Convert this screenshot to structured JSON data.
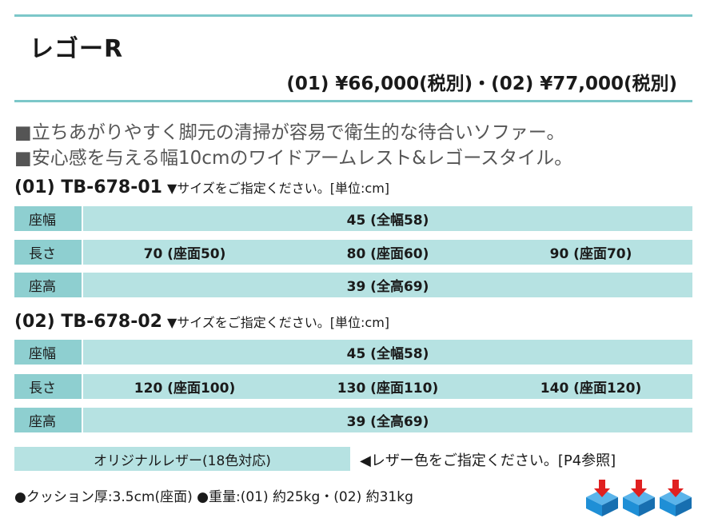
{
  "title": "レゴーR",
  "price": "(01) ¥66,000(税別)・(02) ¥77,000(税別)",
  "features": [
    "■立ちあがりやすく脚元の清掃が容易で衛生的な待合いソファー。",
    "■安心感を与える幅10cmのワイドアームレスト&レゴースタイル。"
  ],
  "models": [
    {
      "code": "(01) TB-678-01",
      "note": "▼サイズをご指定ください。[単位:cm]",
      "rows": [
        {
          "label": "座幅",
          "values": [
            "45 (全幅58)"
          ]
        },
        {
          "label": "長さ",
          "values": [
            "70 (座面50)",
            "80 (座面60)",
            "90 (座面70)"
          ]
        },
        {
          "label": "座高",
          "values": [
            "39 (全高69)"
          ]
        }
      ]
    },
    {
      "code": "(02) TB-678-02",
      "note": "▼サイズをご指定ください。[単位:cm]",
      "rows": [
        {
          "label": "座幅",
          "values": [
            "45 (全幅58)"
          ]
        },
        {
          "label": "長さ",
          "values": [
            "120 (座面100)",
            "130 (座面110)",
            "140 (座面120)"
          ]
        },
        {
          "label": "座高",
          "values": [
            "39 (全高69)"
          ]
        }
      ]
    }
  ],
  "leather": {
    "label": "オリジナルレザー(18色対応)",
    "note": "◀レザー色をご指定ください。[P4参照]"
  },
  "specs": "●クッション厚:3.5cm(座面) ●重量:(01) 約25kg・(02) 約31kg",
  "colors": {
    "accent": "#7cc7c9",
    "label_bg": "#8ecfd0",
    "cell_bg": "#b6e2e2",
    "box_blue": "#1f8fd6",
    "arrow_red": "#e02020"
  },
  "icons": [
    "delivery-box-icon",
    "delivery-box-icon",
    "delivery-box-icon"
  ]
}
